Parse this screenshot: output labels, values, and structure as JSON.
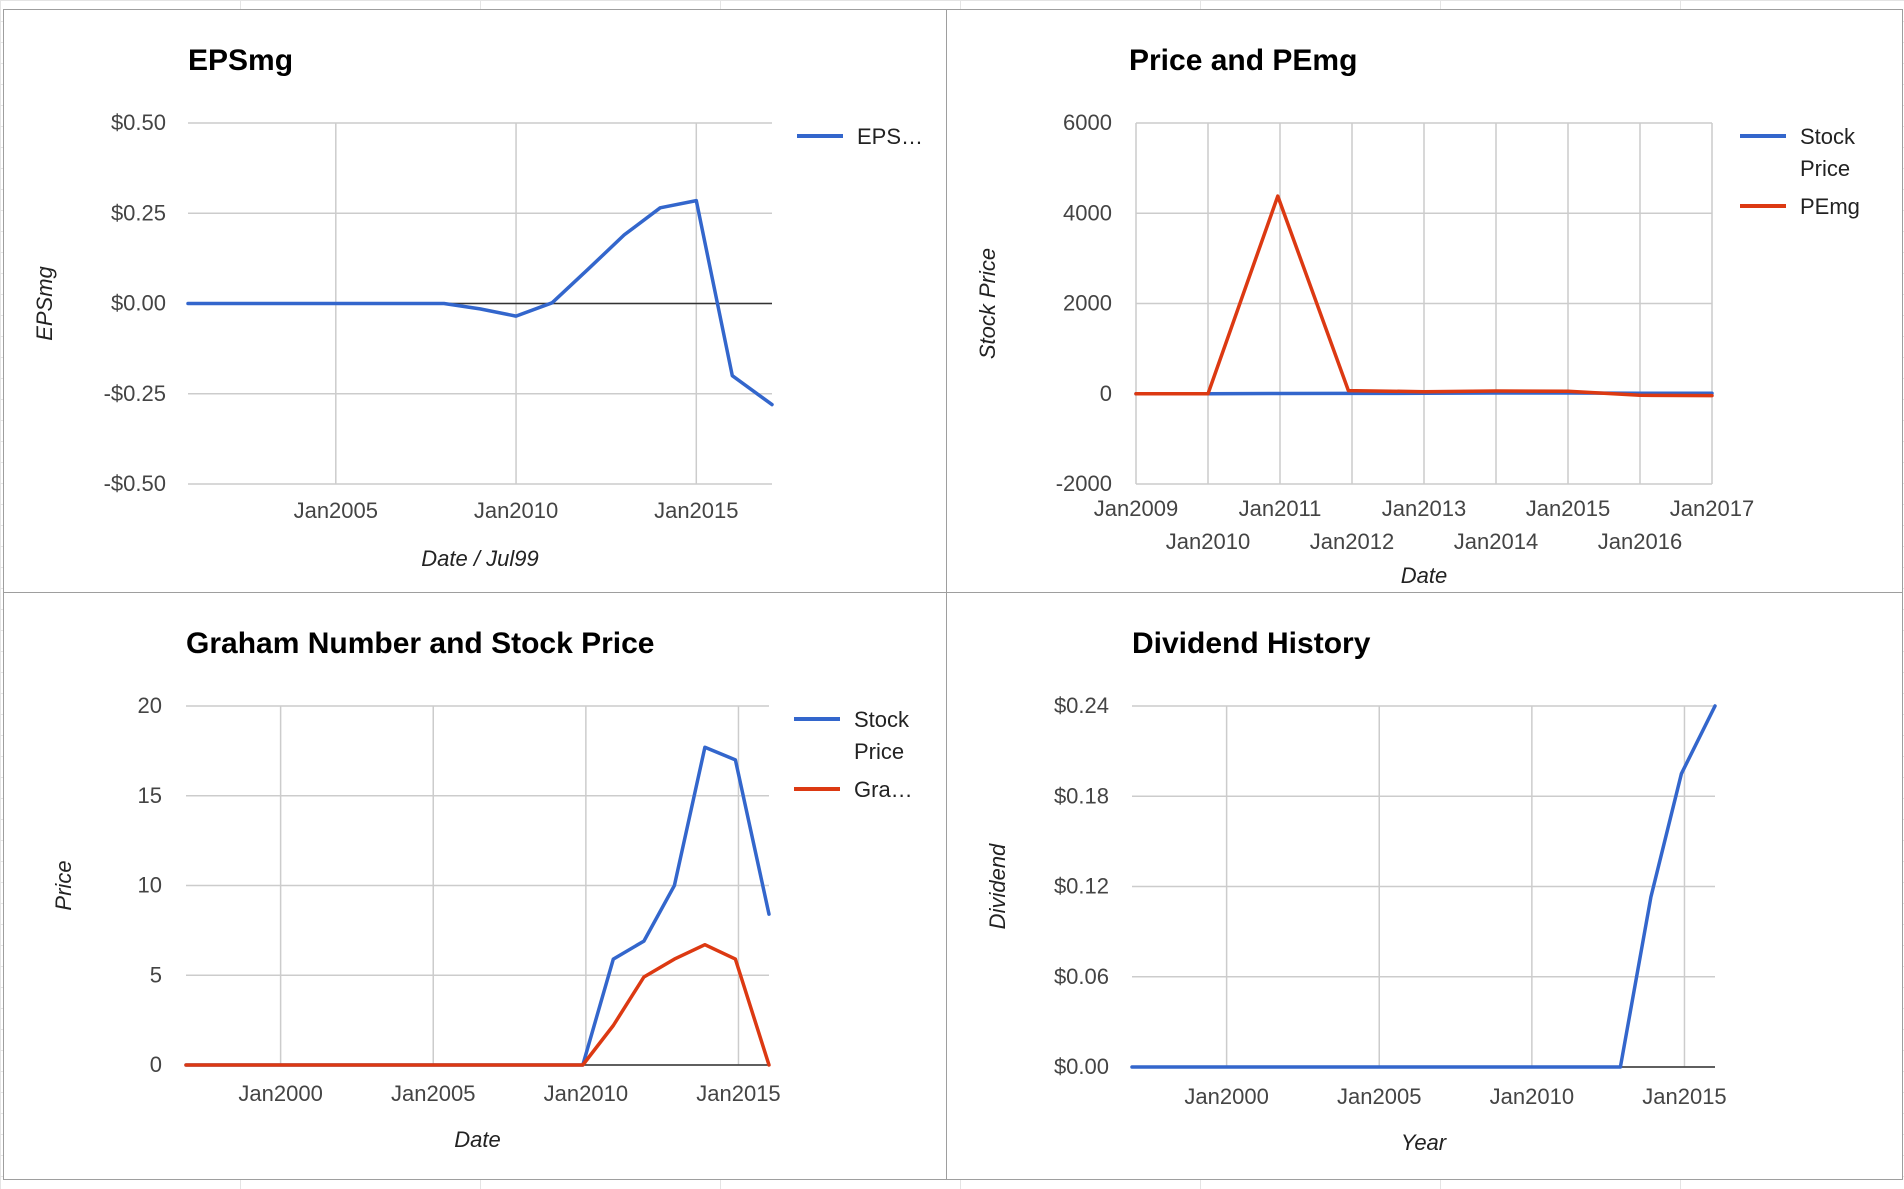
{
  "colors": {
    "series_blue": "#3366cc",
    "series_red": "#dc3912",
    "grid": "#cccccc",
    "baseline": "#333333"
  },
  "chart_data": [
    {
      "id": "p1",
      "type": "line",
      "title": "EPSmg",
      "xlabel": "Date / Jul99",
      "ylabel": "EPSmg",
      "x_ticks": [
        {
          "x": 2005,
          "label": "Jan2005"
        },
        {
          "x": 2010,
          "label": "Jan2010"
        },
        {
          "x": 2015,
          "label": "Jan2015"
        }
      ],
      "y_ticks": [
        {
          "y": 0.5,
          "label": "$0.50"
        },
        {
          "y": 0.25,
          "label": "$0.25"
        },
        {
          "y": 0.0,
          "label": "$0.00"
        },
        {
          "y": -0.25,
          "label": "-$0.25"
        },
        {
          "y": -0.5,
          "label": "-$0.50"
        }
      ],
      "xlim": [
        2000.9,
        2017.1
      ],
      "ylim": [
        -0.5,
        0.5
      ],
      "grid": true,
      "legend_position": "right",
      "series": [
        {
          "name": "EPS…",
          "color": "#3366cc",
          "points": [
            [
              2000.9,
              0
            ],
            [
              2002,
              0
            ],
            [
              2003,
              0
            ],
            [
              2004,
              0
            ],
            [
              2005,
              0
            ],
            [
              2006,
              0
            ],
            [
              2007,
              0
            ],
            [
              2008,
              0
            ],
            [
              2009,
              -0.015
            ],
            [
              2010,
              -0.035
            ],
            [
              2011,
              0.002
            ],
            [
              2012,
              0.095
            ],
            [
              2013,
              0.19
            ],
            [
              2014,
              0.265
            ],
            [
              2015,
              0.285
            ],
            [
              2016,
              -0.2
            ],
            [
              2017.1,
              -0.28
            ]
          ]
        }
      ]
    },
    {
      "id": "p2",
      "type": "line",
      "title": "Price and PEmg",
      "xlabel": "Date",
      "ylabel": "Stock Price",
      "x_ticks": [
        {
          "x": 2009,
          "label": "Jan2009",
          "row": 0
        },
        {
          "x": 2010,
          "label": "Jan2010",
          "row": 1
        },
        {
          "x": 2011,
          "label": "Jan2011",
          "row": 0
        },
        {
          "x": 2012,
          "label": "Jan2012",
          "row": 1
        },
        {
          "x": 2013,
          "label": "Jan2013",
          "row": 0
        },
        {
          "x": 2014,
          "label": "Jan2014",
          "row": 1
        },
        {
          "x": 2015,
          "label": "Jan2015",
          "row": 0
        },
        {
          "x": 2016,
          "label": "Jan2016",
          "row": 1
        },
        {
          "x": 2017,
          "label": "Jan2017",
          "row": 0
        }
      ],
      "y_ticks": [
        {
          "y": 6000,
          "label": "6000"
        },
        {
          "y": 4000,
          "label": "4000"
        },
        {
          "y": 2000,
          "label": "2000"
        },
        {
          "y": 0,
          "label": "0"
        },
        {
          "y": -2000,
          "label": "-2000"
        }
      ],
      "xlim": [
        2009,
        2017
      ],
      "ylim": [
        -2000,
        6000
      ],
      "grid": true,
      "legend_position": "right",
      "series": [
        {
          "name": [
            "Stock",
            "Price"
          ],
          "color": "#3366cc",
          "points": [
            [
              2009,
              0
            ],
            [
              2010,
              0
            ],
            [
              2011,
              6
            ],
            [
              2012,
              7
            ],
            [
              2013,
              10
            ],
            [
              2014,
              17
            ],
            [
              2015,
              17
            ],
            [
              2016,
              9
            ],
            [
              2017,
              9
            ]
          ]
        },
        {
          "name": [
            "PEmg"
          ],
          "color": "#dc3912",
          "points": [
            [
              2009,
              0
            ],
            [
              2010,
              0
            ],
            [
              2010.97,
              4380
            ],
            [
              2011.95,
              70
            ],
            [
              2013,
              45
            ],
            [
              2014,
              60
            ],
            [
              2015,
              55
            ],
            [
              2016,
              -35
            ],
            [
              2017,
              -40
            ]
          ]
        }
      ]
    },
    {
      "id": "p3",
      "type": "line",
      "title": "Graham Number and Stock Price",
      "xlabel": "Date",
      "ylabel": "Price",
      "x_ticks": [
        {
          "x": 2000,
          "label": "Jan2000"
        },
        {
          "x": 2005,
          "label": "Jan2005"
        },
        {
          "x": 2010,
          "label": "Jan2010"
        },
        {
          "x": 2015,
          "label": "Jan2015"
        }
      ],
      "y_ticks": [
        {
          "y": 20,
          "label": "20"
        },
        {
          "y": 15,
          "label": "15"
        },
        {
          "y": 10,
          "label": "10"
        },
        {
          "y": 5,
          "label": "5"
        },
        {
          "y": 0,
          "label": "0"
        }
      ],
      "xlim": [
        1996.9,
        2016
      ],
      "ylim": [
        0,
        20
      ],
      "grid": true,
      "legend_position": "right",
      "series": [
        {
          "name": [
            "Stock",
            "Price"
          ],
          "color": "#3366cc",
          "points": [
            [
              1996.9,
              0
            ],
            [
              2000,
              0
            ],
            [
              2005,
              0
            ],
            [
              2009.9,
              0
            ],
            [
              2010.9,
              5.9
            ],
            [
              2011.9,
              6.9
            ],
            [
              2012.9,
              10
            ],
            [
              2013.9,
              17.7
            ],
            [
              2014.9,
              17.0
            ],
            [
              2016,
              8.4
            ]
          ]
        },
        {
          "name": [
            "Gra…"
          ],
          "color": "#dc3912",
          "points": [
            [
              1996.9,
              0
            ],
            [
              2000,
              0
            ],
            [
              2005,
              0
            ],
            [
              2009.9,
              0
            ],
            [
              2010.9,
              2.2
            ],
            [
              2011.9,
              4.9
            ],
            [
              2012.9,
              5.9
            ],
            [
              2013.9,
              6.7
            ],
            [
              2014.9,
              5.9
            ],
            [
              2016,
              0
            ]
          ]
        }
      ]
    },
    {
      "id": "p4",
      "type": "line",
      "title": "Dividend History",
      "xlabel": "Year",
      "ylabel": "Dividend",
      "x_ticks": [
        {
          "x": 2000,
          "label": "Jan2000"
        },
        {
          "x": 2005,
          "label": "Jan2005"
        },
        {
          "x": 2010,
          "label": "Jan2010"
        },
        {
          "x": 2015,
          "label": "Jan2015"
        }
      ],
      "y_ticks": [
        {
          "y": 0.24,
          "label": "$0.24"
        },
        {
          "y": 0.18,
          "label": "$0.18"
        },
        {
          "y": 0.12,
          "label": "$0.12"
        },
        {
          "y": 0.06,
          "label": "$0.06"
        },
        {
          "y": 0.0,
          "label": "$0.00"
        }
      ],
      "xlim": [
        1996.9,
        2016
      ],
      "ylim": [
        0,
        0.24
      ],
      "grid": true,
      "legend_position": "none",
      "series": [
        {
          "name": "",
          "color": "#3366cc",
          "points": [
            [
              1996.9,
              0
            ],
            [
              2000,
              0
            ],
            [
              2005,
              0
            ],
            [
              2010,
              0
            ],
            [
              2012.9,
              0
            ],
            [
              2013.9,
              0.113
            ],
            [
              2014.9,
              0.195
            ],
            [
              2016,
              0.24
            ]
          ]
        }
      ]
    }
  ]
}
